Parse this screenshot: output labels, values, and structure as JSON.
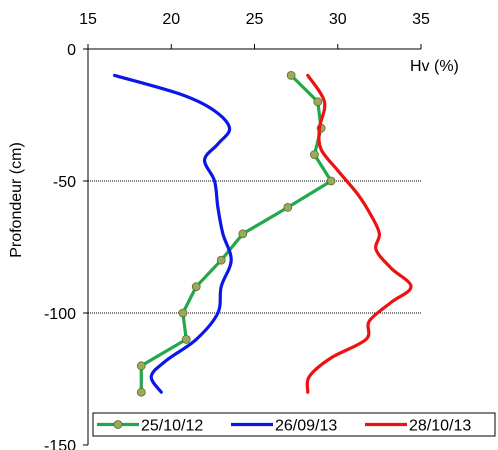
{
  "chart_data": {
    "type": "line",
    "title": "",
    "xlabel": "Hv (%)",
    "ylabel": "Profondeur (cm)",
    "x_axis_position": "top",
    "xlim": [
      15,
      35
    ],
    "ylim": [
      -150,
      0
    ],
    "x_ticks": [
      15,
      20,
      25,
      30,
      35
    ],
    "y_ticks": [
      0,
      -50,
      -100,
      -150
    ],
    "gridlines_y": [
      -50,
      -100
    ],
    "legend_position": "bottom",
    "series": [
      {
        "name": "25/10/12",
        "color": "#22a84a",
        "marker": "circle",
        "marker_color": "#9aaa5a",
        "smooth": false,
        "points": [
          [
            27.2,
            -10
          ],
          [
            28.8,
            -20
          ],
          [
            29.0,
            -30
          ],
          [
            28.6,
            -40
          ],
          [
            29.6,
            -50
          ],
          [
            27.0,
            -60
          ],
          [
            24.3,
            -70
          ],
          [
            23.0,
            -80
          ],
          [
            21.5,
            -90
          ],
          [
            20.7,
            -100
          ],
          [
            20.9,
            -110
          ],
          [
            18.2,
            -120
          ],
          [
            18.2,
            -130
          ]
        ]
      },
      {
        "name": "26/09/13",
        "color": "#0a17e8",
        "marker": "none",
        "smooth": true,
        "points": [
          [
            16.6,
            -10
          ],
          [
            20.5,
            -17
          ],
          [
            22.5,
            -23
          ],
          [
            23.5,
            -30
          ],
          [
            22.8,
            -36
          ],
          [
            22.0,
            -42
          ],
          [
            22.6,
            -50
          ],
          [
            22.8,
            -60
          ],
          [
            23.1,
            -70
          ],
          [
            23.6,
            -80
          ],
          [
            23.0,
            -90
          ],
          [
            22.8,
            -100
          ],
          [
            21.5,
            -110
          ],
          [
            19.7,
            -118
          ],
          [
            18.8,
            -124
          ],
          [
            19.4,
            -130
          ]
        ]
      },
      {
        "name": "28/10/13",
        "color": "#ee1111",
        "marker": "none",
        "smooth": true,
        "points": [
          [
            28.2,
            -10
          ],
          [
            29.2,
            -20
          ],
          [
            28.9,
            -30
          ],
          [
            29.0,
            -38
          ],
          [
            30.0,
            -46
          ],
          [
            31.2,
            -55
          ],
          [
            32.0,
            -63
          ],
          [
            32.5,
            -70
          ],
          [
            32.3,
            -76
          ],
          [
            33.2,
            -83
          ],
          [
            34.4,
            -90
          ],
          [
            33.2,
            -96
          ],
          [
            31.9,
            -103
          ],
          [
            31.7,
            -110
          ],
          [
            29.6,
            -117
          ],
          [
            28.3,
            -124
          ],
          [
            28.2,
            -130
          ]
        ]
      }
    ]
  }
}
